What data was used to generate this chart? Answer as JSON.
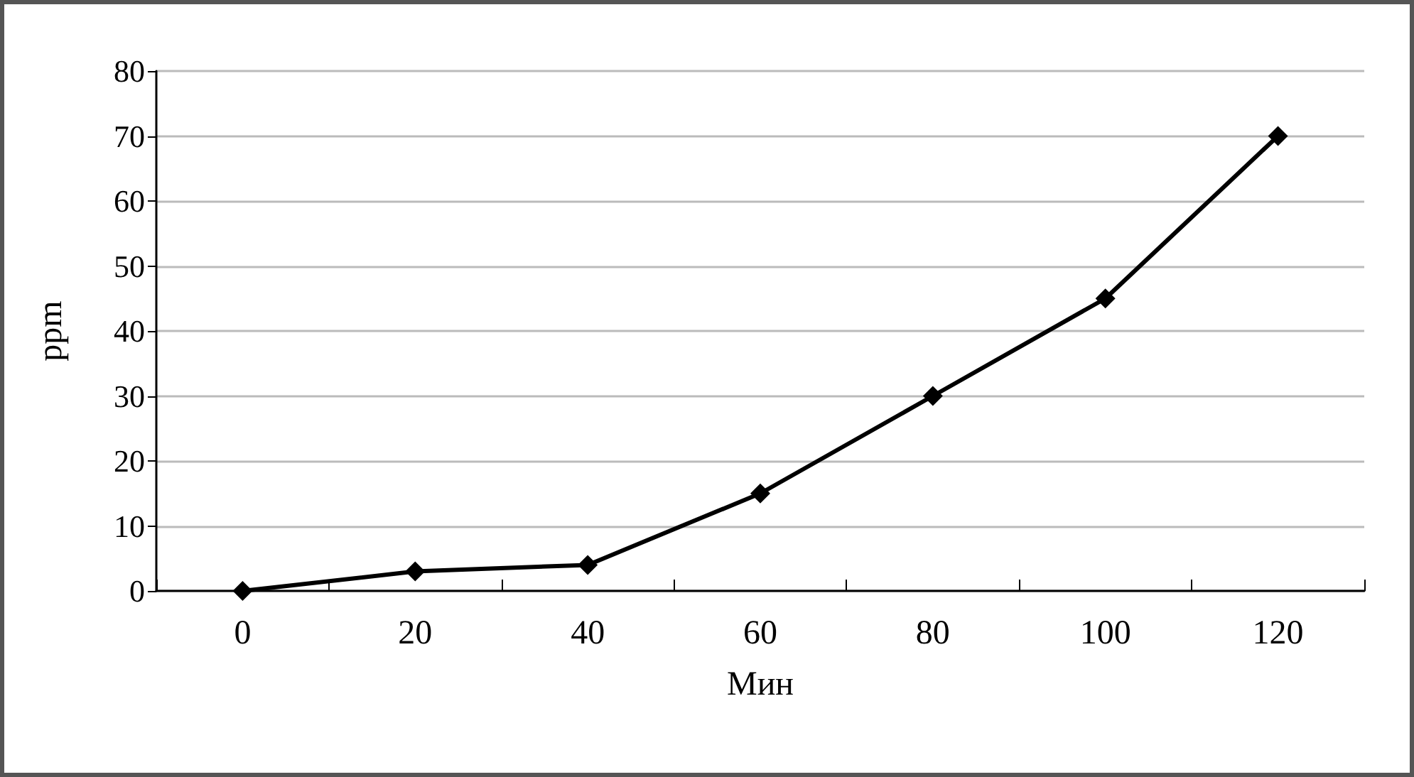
{
  "chart_data": {
    "type": "line",
    "xlabel": "Мин",
    "ylabel": "ppm",
    "categories": [
      "0",
      "20",
      "40",
      "60",
      "80",
      "100",
      "120"
    ],
    "series": [
      {
        "color": "#000000",
        "values": [
          0,
          3,
          4,
          15,
          30,
          45,
          70
        ]
      }
    ],
    "ylim": [
      0,
      80
    ],
    "yticks": [
      0,
      10,
      20,
      30,
      40,
      50,
      60,
      70,
      80
    ],
    "grid": "y",
    "marker": "diamond",
    "line_style": "solid"
  }
}
